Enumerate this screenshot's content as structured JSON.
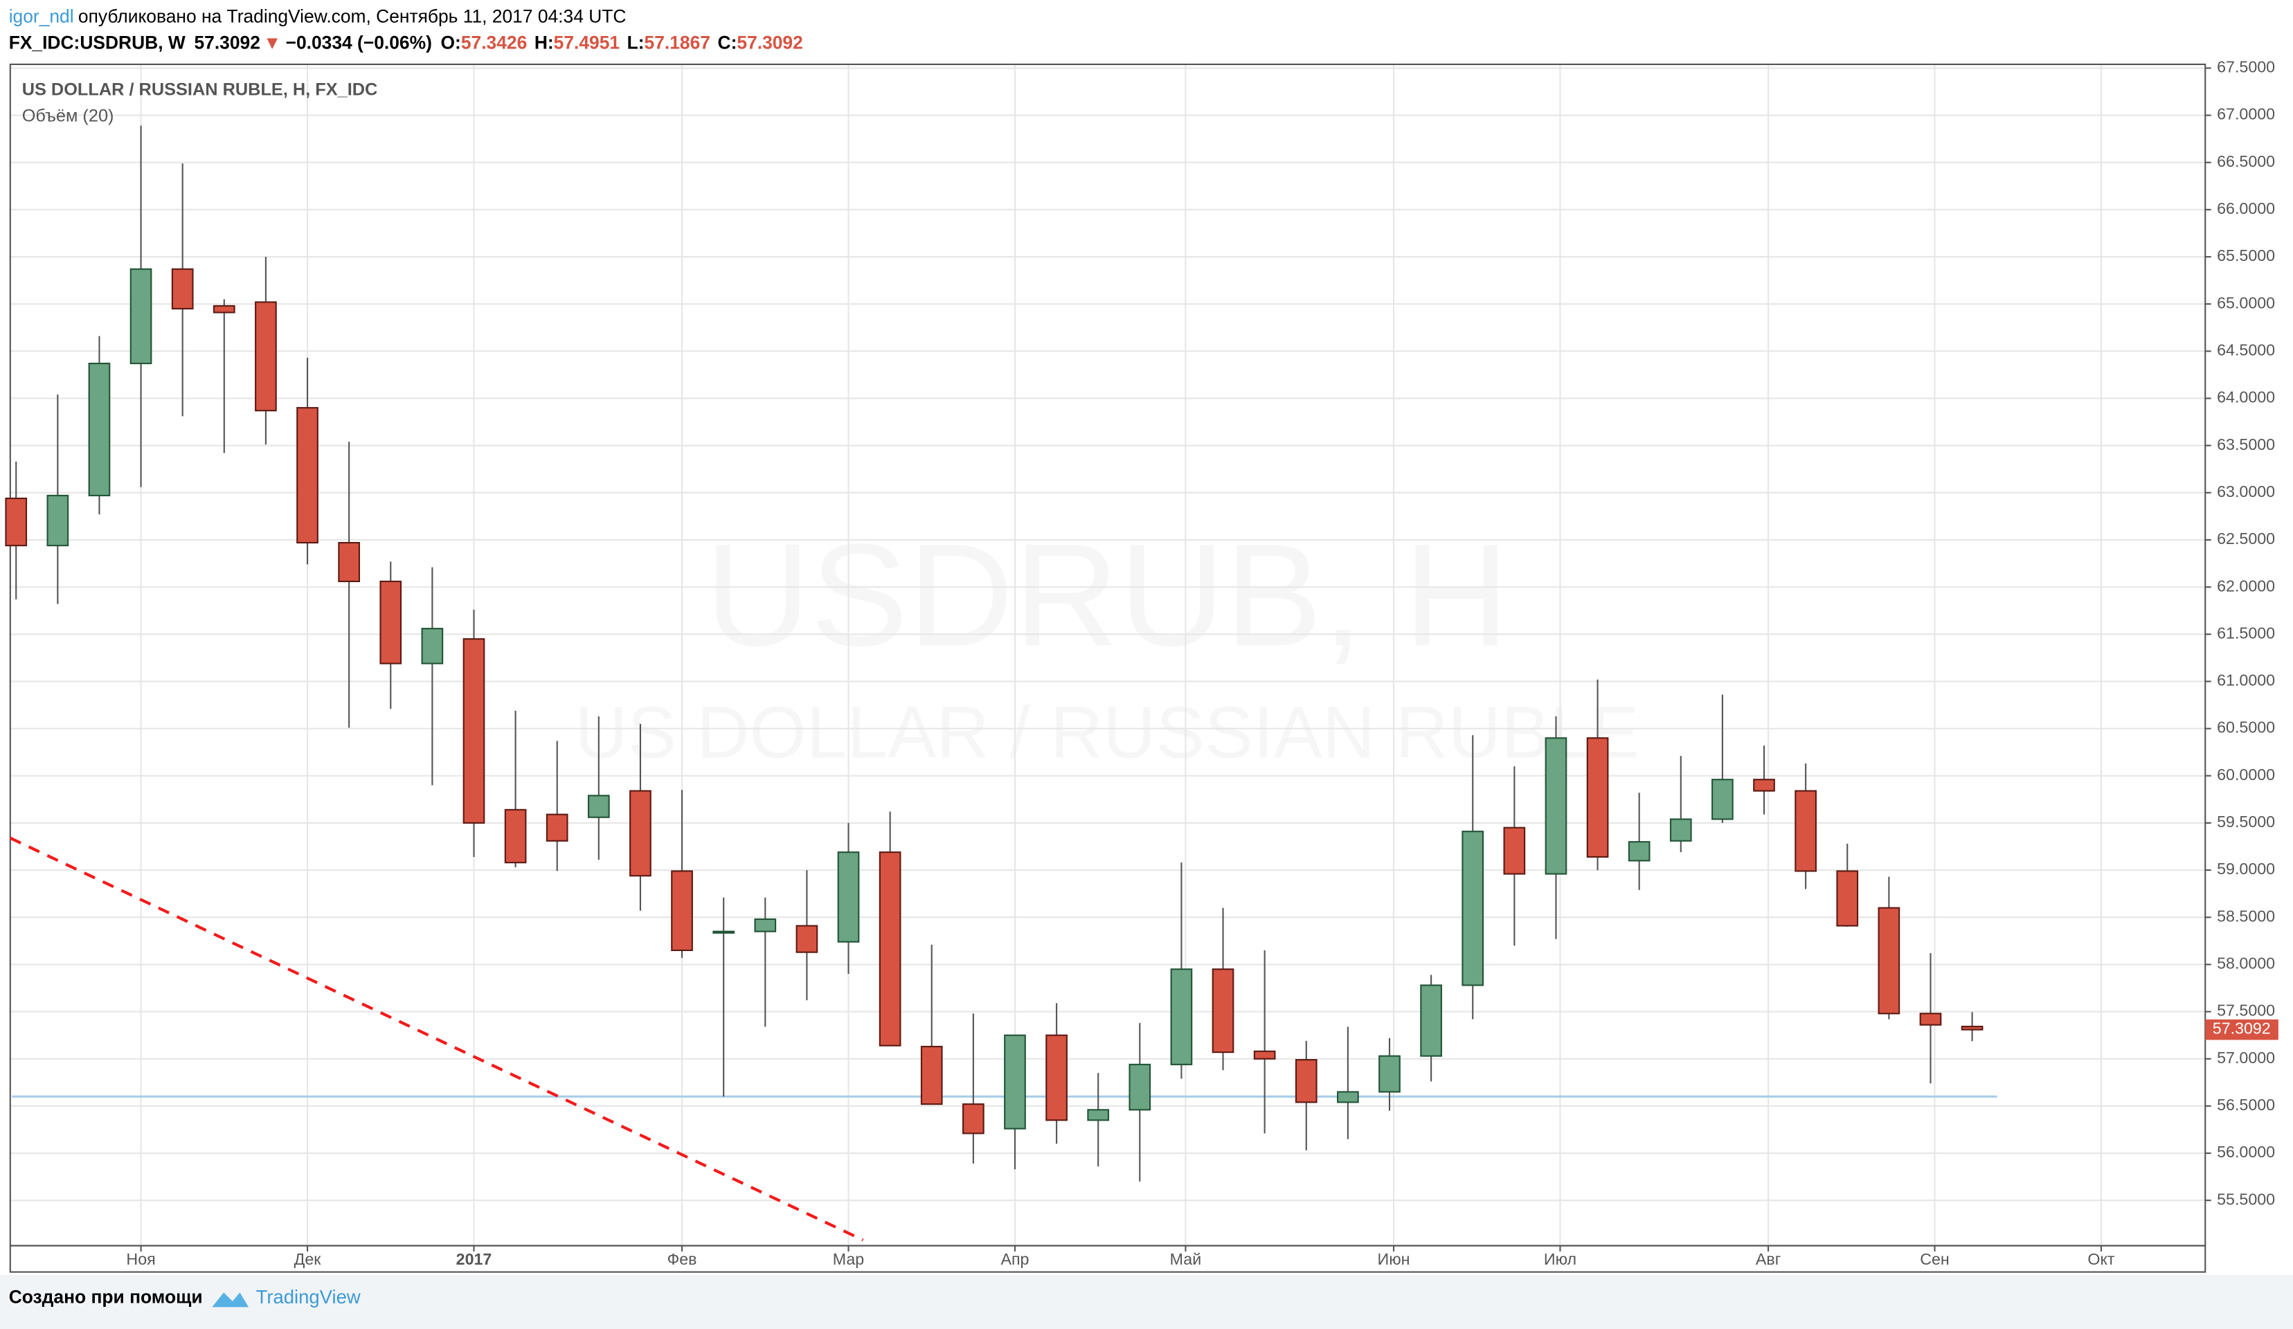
{
  "header": {
    "author": "igor_ndl",
    "published": "опубликовано на TradingView.com, Сентябрь 11, 2017 04:34 UTC",
    "symbol": "FX_IDC:USDRUB, W",
    "last": "57.3092",
    "arrow": "▼",
    "change": "−0.0334 (−0.06%)",
    "quote": [
      {
        "label": "O:",
        "value": "57.3426"
      },
      {
        "label": "H:",
        "value": "57.4951"
      },
      {
        "label": "L:",
        "value": "57.1867"
      },
      {
        "label": "C:",
        "value": "57.3092"
      }
    ]
  },
  "chart_data": {
    "type": "candlestick",
    "title": "US DOLLAR / RUSSIAN RUBLE, H, FX_IDC",
    "subtitle": "Объём (20)",
    "watermark": "USDRUB, H",
    "watermark_subtitle": "US DOLLAR / RUSSIAN RUBLE",
    "up_color": "#6ba583",
    "down_color": "#d75442",
    "up_border": "#225437",
    "down_border": "#5b1a13",
    "open": [
      62.94,
      62.44,
      62.97,
      64.37,
      65.37,
      64.98,
      65.02,
      63.9,
      62.47,
      62.06,
      61.19,
      61.45,
      59.64,
      59.59,
      59.56,
      59.84,
      58.99,
      58.34,
      58.35,
      58.41,
      58.24,
      59.19,
      57.13,
      56.52,
      56.26,
      57.25,
      56.35,
      56.46,
      56.94,
      57.95,
      57.08,
      56.99,
      56.54,
      56.65,
      57.03,
      57.78,
      59.45,
      58.96,
      60.4,
      59.1,
      59.31,
      59.54,
      59.96,
      59.84,
      58.99,
      58.6,
      57.48,
      57.3426
    ],
    "high": [
      63.33,
      64.04,
      64.66,
      66.89,
      66.49,
      65.05,
      65.5,
      64.43,
      63.54,
      62.27,
      62.21,
      61.76,
      60.69,
      60.37,
      60.63,
      60.55,
      59.85,
      58.71,
      58.71,
      59.0,
      59.5,
      59.62,
      58.21,
      57.48,
      57.25,
      57.59,
      56.85,
      57.38,
      59.08,
      58.6,
      58.15,
      57.19,
      57.34,
      57.22,
      57.89,
      60.43,
      60.1,
      60.63,
      61.02,
      59.82,
      60.21,
      60.86,
      60.32,
      60.13,
      59.28,
      58.93,
      58.12,
      57.4951
    ],
    "low": [
      61.87,
      61.82,
      62.77,
      63.06,
      63.81,
      63.42,
      63.51,
      62.24,
      60.51,
      60.71,
      59.9,
      59.14,
      59.03,
      58.99,
      59.11,
      58.57,
      58.07,
      56.6,
      57.34,
      57.62,
      57.9,
      57.14,
      56.52,
      55.89,
      55.83,
      56.1,
      55.86,
      55.7,
      56.79,
      56.88,
      56.21,
      56.03,
      56.15,
      56.45,
      56.76,
      57.42,
      58.2,
      58.27,
      59.0,
      58.79,
      59.19,
      59.5,
      59.59,
      58.8,
      58.4,
      57.42,
      56.74,
      57.1867
    ],
    "close": [
      62.44,
      62.97,
      64.37,
      65.37,
      64.95,
      64.91,
      63.87,
      62.47,
      62.06,
      61.19,
      61.56,
      59.5,
      59.08,
      59.31,
      59.79,
      58.94,
      58.15,
      58.35,
      58.48,
      58.13,
      59.19,
      57.14,
      56.52,
      56.21,
      57.25,
      56.35,
      56.46,
      56.94,
      57.95,
      57.07,
      57.0,
      56.54,
      56.65,
      57.03,
      57.78,
      59.41,
      58.96,
      60.4,
      59.14,
      59.3,
      59.54,
      59.96,
      59.84,
      58.99,
      58.41,
      57.48,
      57.36,
      57.3092
    ],
    "xlim": [
      -0.14,
      52.6
    ],
    "xticks": [
      {
        "value": 3.0,
        "label": "Ноя"
      },
      {
        "value": 7.0,
        "label": "Дек"
      },
      {
        "value": 11.0,
        "label": "2017"
      },
      {
        "value": 16.0,
        "label": "Фев"
      },
      {
        "value": 20.0,
        "label": "Мар"
      },
      {
        "value": 24.0,
        "label": "Апр"
      },
      {
        "value": 28.1,
        "label": "Май"
      },
      {
        "value": 33.1,
        "label": "Июн"
      },
      {
        "value": 37.1,
        "label": "Июл"
      },
      {
        "value": 42.1,
        "label": "Авг"
      },
      {
        "value": 46.1,
        "label": "Сен"
      },
      {
        "value": 50.1,
        "label": "Окт"
      }
    ],
    "ylim": [
      55.02,
      67.54
    ],
    "yticks": [
      {
        "value": 55.5,
        "label": "55.5000"
      },
      {
        "value": 56,
        "label": "56.0000"
      },
      {
        "value": 56.5,
        "label": "56.5000"
      },
      {
        "value": 57,
        "label": "57.0000"
      },
      {
        "value": 57.5,
        "label": "57.5000"
      },
      {
        "value": 58,
        "label": "58.0000"
      },
      {
        "value": 58.5,
        "label": "58.5000"
      },
      {
        "value": 59,
        "label": "59.0000"
      },
      {
        "value": 59.5,
        "label": "59.5000"
      },
      {
        "value": 60,
        "label": "60.0000"
      },
      {
        "value": 60.5,
        "label": "60.5000"
      },
      {
        "value": 61,
        "label": "61.0000"
      },
      {
        "value": 61.5,
        "label": "61.5000"
      },
      {
        "value": 62,
        "label": "62.0000"
      },
      {
        "value": 62.5,
        "label": "62.5000"
      },
      {
        "value": 63,
        "label": "63.0000"
      },
      {
        "value": 63.5,
        "label": "63.5000"
      },
      {
        "value": 64,
        "label": "64.0000"
      },
      {
        "value": 64.5,
        "label": "64.5000"
      },
      {
        "value": 65,
        "label": "65.0000"
      },
      {
        "value": 65.5,
        "label": "65.5000"
      },
      {
        "value": 66,
        "label": "66.0000"
      },
      {
        "value": 66.5,
        "label": "66.5000"
      },
      {
        "value": 67,
        "label": "67.0000"
      },
      {
        "value": 67.5,
        "label": "67.5000"
      }
    ],
    "grid": true,
    "horizontal_line": {
      "value": 56.6,
      "x": [
        -0.1,
        47.6
      ],
      "color": "#a9cde8"
    },
    "trend_line": {
      "x": [
        -0.14,
        20.35
      ],
      "y": [
        59.34,
        55.08
      ],
      "color": "#f21b1b"
    }
  },
  "footer": {
    "text": "Создано при помощи",
    "brand": "TradingView"
  }
}
